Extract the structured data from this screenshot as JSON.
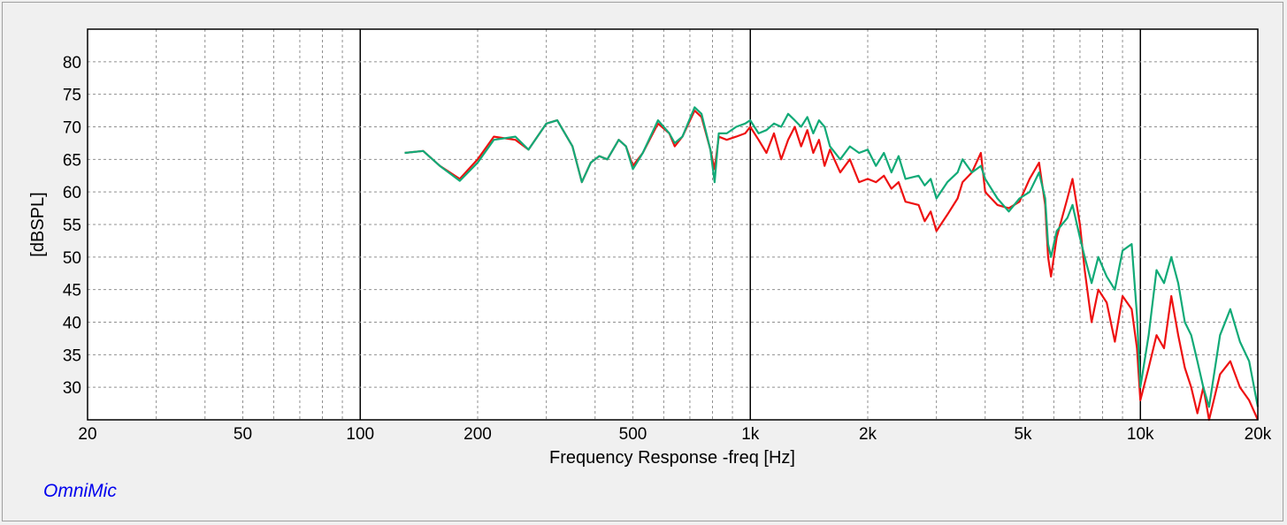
{
  "brand": "OmniMic",
  "chart_data": {
    "type": "line",
    "title": "",
    "xlabel": "Frequency Response -freq [Hz]",
    "ylabel": "[dBSPL]",
    "x_scale": "log",
    "xlim": [
      20,
      20000
    ],
    "ylim": [
      25,
      85
    ],
    "grid": true,
    "x_ticks": [
      {
        "value": 20,
        "label": "20"
      },
      {
        "value": 50,
        "label": "50"
      },
      {
        "value": 100,
        "label": "100"
      },
      {
        "value": 200,
        "label": "200"
      },
      {
        "value": 500,
        "label": "500"
      },
      {
        "value": 1000,
        "label": "1k"
      },
      {
        "value": 2000,
        "label": "2k"
      },
      {
        "value": 5000,
        "label": "5k"
      },
      {
        "value": 10000,
        "label": "10k"
      },
      {
        "value": 20000,
        "label": "20k"
      }
    ],
    "y_ticks": [
      30,
      35,
      40,
      45,
      50,
      55,
      60,
      65,
      70,
      75,
      80
    ],
    "series": [
      {
        "color": "#ee1111",
        "points": [
          [
            130,
            66
          ],
          [
            145,
            66.3
          ],
          [
            160,
            64
          ],
          [
            180,
            62
          ],
          [
            200,
            65
          ],
          [
            220,
            68.5
          ],
          [
            250,
            68
          ],
          [
            270,
            66.5
          ],
          [
            300,
            70.5
          ],
          [
            320,
            71
          ],
          [
            350,
            67
          ],
          [
            370,
            61.5
          ],
          [
            390,
            64.5
          ],
          [
            410,
            65.5
          ],
          [
            430,
            65
          ],
          [
            460,
            68
          ],
          [
            480,
            67
          ],
          [
            500,
            64
          ],
          [
            530,
            66
          ],
          [
            580,
            70.5
          ],
          [
            620,
            69
          ],
          [
            640,
            67
          ],
          [
            670,
            68.5
          ],
          [
            720,
            72.5
          ],
          [
            750,
            71.5
          ],
          [
            790,
            66.5
          ],
          [
            810,
            63.5
          ],
          [
            830,
            68.5
          ],
          [
            870,
            68
          ],
          [
            920,
            68.5
          ],
          [
            970,
            69
          ],
          [
            1000,
            70
          ],
          [
            1050,
            68
          ],
          [
            1100,
            66
          ],
          [
            1150,
            69
          ],
          [
            1200,
            65
          ],
          [
            1250,
            68
          ],
          [
            1300,
            70
          ],
          [
            1350,
            67
          ],
          [
            1400,
            69.5
          ],
          [
            1450,
            66
          ],
          [
            1500,
            68
          ],
          [
            1550,
            64
          ],
          [
            1600,
            66.5
          ],
          [
            1700,
            63
          ],
          [
            1800,
            65
          ],
          [
            1900,
            61.5
          ],
          [
            2000,
            62
          ],
          [
            2100,
            61.5
          ],
          [
            2200,
            62.5
          ],
          [
            2300,
            60.5
          ],
          [
            2400,
            61.5
          ],
          [
            2500,
            58.5
          ],
          [
            2700,
            58
          ],
          [
            2800,
            55.5
          ],
          [
            2900,
            57
          ],
          [
            3000,
            54
          ],
          [
            3200,
            56.5
          ],
          [
            3400,
            59
          ],
          [
            3500,
            61.5
          ],
          [
            3700,
            63
          ],
          [
            3900,
            66
          ],
          [
            4000,
            60
          ],
          [
            4300,
            58
          ],
          [
            4600,
            57.5
          ],
          [
            4900,
            58.5
          ],
          [
            5200,
            62
          ],
          [
            5500,
            64.5
          ],
          [
            5700,
            58
          ],
          [
            5800,
            50
          ],
          [
            5900,
            47
          ],
          [
            6100,
            53
          ],
          [
            6500,
            59
          ],
          [
            6700,
            62
          ],
          [
            7000,
            55
          ],
          [
            7200,
            48
          ],
          [
            7500,
            40
          ],
          [
            7800,
            45
          ],
          [
            8200,
            43
          ],
          [
            8600,
            37
          ],
          [
            9000,
            44
          ],
          [
            9500,
            42
          ],
          [
            9800,
            36
          ],
          [
            10000,
            28
          ],
          [
            10500,
            33
          ],
          [
            11000,
            38
          ],
          [
            11500,
            36
          ],
          [
            12000,
            44
          ],
          [
            12500,
            38
          ],
          [
            13000,
            33
          ],
          [
            13500,
            30
          ],
          [
            14000,
            26
          ],
          [
            14500,
            30
          ],
          [
            15000,
            25
          ],
          [
            16000,
            32
          ],
          [
            17000,
            34
          ],
          [
            18000,
            30
          ],
          [
            19000,
            28
          ],
          [
            20000,
            25
          ]
        ]
      },
      {
        "color": "#11aa77",
        "points": [
          [
            130,
            66
          ],
          [
            145,
            66.3
          ],
          [
            160,
            64
          ],
          [
            180,
            61.7
          ],
          [
            200,
            64.5
          ],
          [
            220,
            68
          ],
          [
            250,
            68.5
          ],
          [
            270,
            66.5
          ],
          [
            300,
            70.5
          ],
          [
            320,
            71
          ],
          [
            350,
            67
          ],
          [
            370,
            61.5
          ],
          [
            390,
            64.5
          ],
          [
            410,
            65.5
          ],
          [
            430,
            65
          ],
          [
            460,
            68
          ],
          [
            480,
            67
          ],
          [
            500,
            63.5
          ],
          [
            530,
            66
          ],
          [
            580,
            71
          ],
          [
            620,
            69
          ],
          [
            640,
            67.5
          ],
          [
            670,
            68.5
          ],
          [
            720,
            73
          ],
          [
            750,
            72
          ],
          [
            790,
            66.5
          ],
          [
            810,
            61.5
          ],
          [
            830,
            69
          ],
          [
            870,
            69
          ],
          [
            920,
            70
          ],
          [
            970,
            70.5
          ],
          [
            1000,
            71
          ],
          [
            1050,
            69
          ],
          [
            1100,
            69.5
          ],
          [
            1150,
            70.5
          ],
          [
            1200,
            70
          ],
          [
            1250,
            72
          ],
          [
            1300,
            71
          ],
          [
            1350,
            70
          ],
          [
            1400,
            71.5
          ],
          [
            1450,
            69
          ],
          [
            1500,
            71
          ],
          [
            1550,
            70
          ],
          [
            1600,
            67
          ],
          [
            1700,
            65
          ],
          [
            1800,
            67
          ],
          [
            1900,
            66
          ],
          [
            2000,
            66.5
          ],
          [
            2100,
            64
          ],
          [
            2200,
            66
          ],
          [
            2300,
            63
          ],
          [
            2400,
            65.5
          ],
          [
            2500,
            62
          ],
          [
            2700,
            62.5
          ],
          [
            2800,
            61
          ],
          [
            2900,
            62
          ],
          [
            3000,
            59
          ],
          [
            3200,
            61.5
          ],
          [
            3400,
            63
          ],
          [
            3500,
            65
          ],
          [
            3700,
            63
          ],
          [
            3900,
            64
          ],
          [
            4000,
            62
          ],
          [
            4300,
            59
          ],
          [
            4600,
            57
          ],
          [
            4900,
            59
          ],
          [
            5200,
            60
          ],
          [
            5500,
            63
          ],
          [
            5700,
            59
          ],
          [
            5800,
            52
          ],
          [
            5900,
            50
          ],
          [
            6100,
            54
          ],
          [
            6500,
            56
          ],
          [
            6700,
            58
          ],
          [
            7000,
            53
          ],
          [
            7200,
            50
          ],
          [
            7500,
            46
          ],
          [
            7800,
            50
          ],
          [
            8200,
            47
          ],
          [
            8600,
            45
          ],
          [
            9000,
            51
          ],
          [
            9500,
            52
          ],
          [
            9800,
            41
          ],
          [
            10000,
            30
          ],
          [
            10500,
            38
          ],
          [
            11000,
            48
          ],
          [
            11500,
            46
          ],
          [
            12000,
            50
          ],
          [
            12500,
            46
          ],
          [
            13000,
            40
          ],
          [
            13500,
            38
          ],
          [
            14000,
            34
          ],
          [
            14500,
            30
          ],
          [
            15000,
            27
          ],
          [
            16000,
            38
          ],
          [
            17000,
            42
          ],
          [
            18000,
            37
          ],
          [
            19000,
            34
          ],
          [
            20000,
            27
          ]
        ]
      }
    ]
  }
}
